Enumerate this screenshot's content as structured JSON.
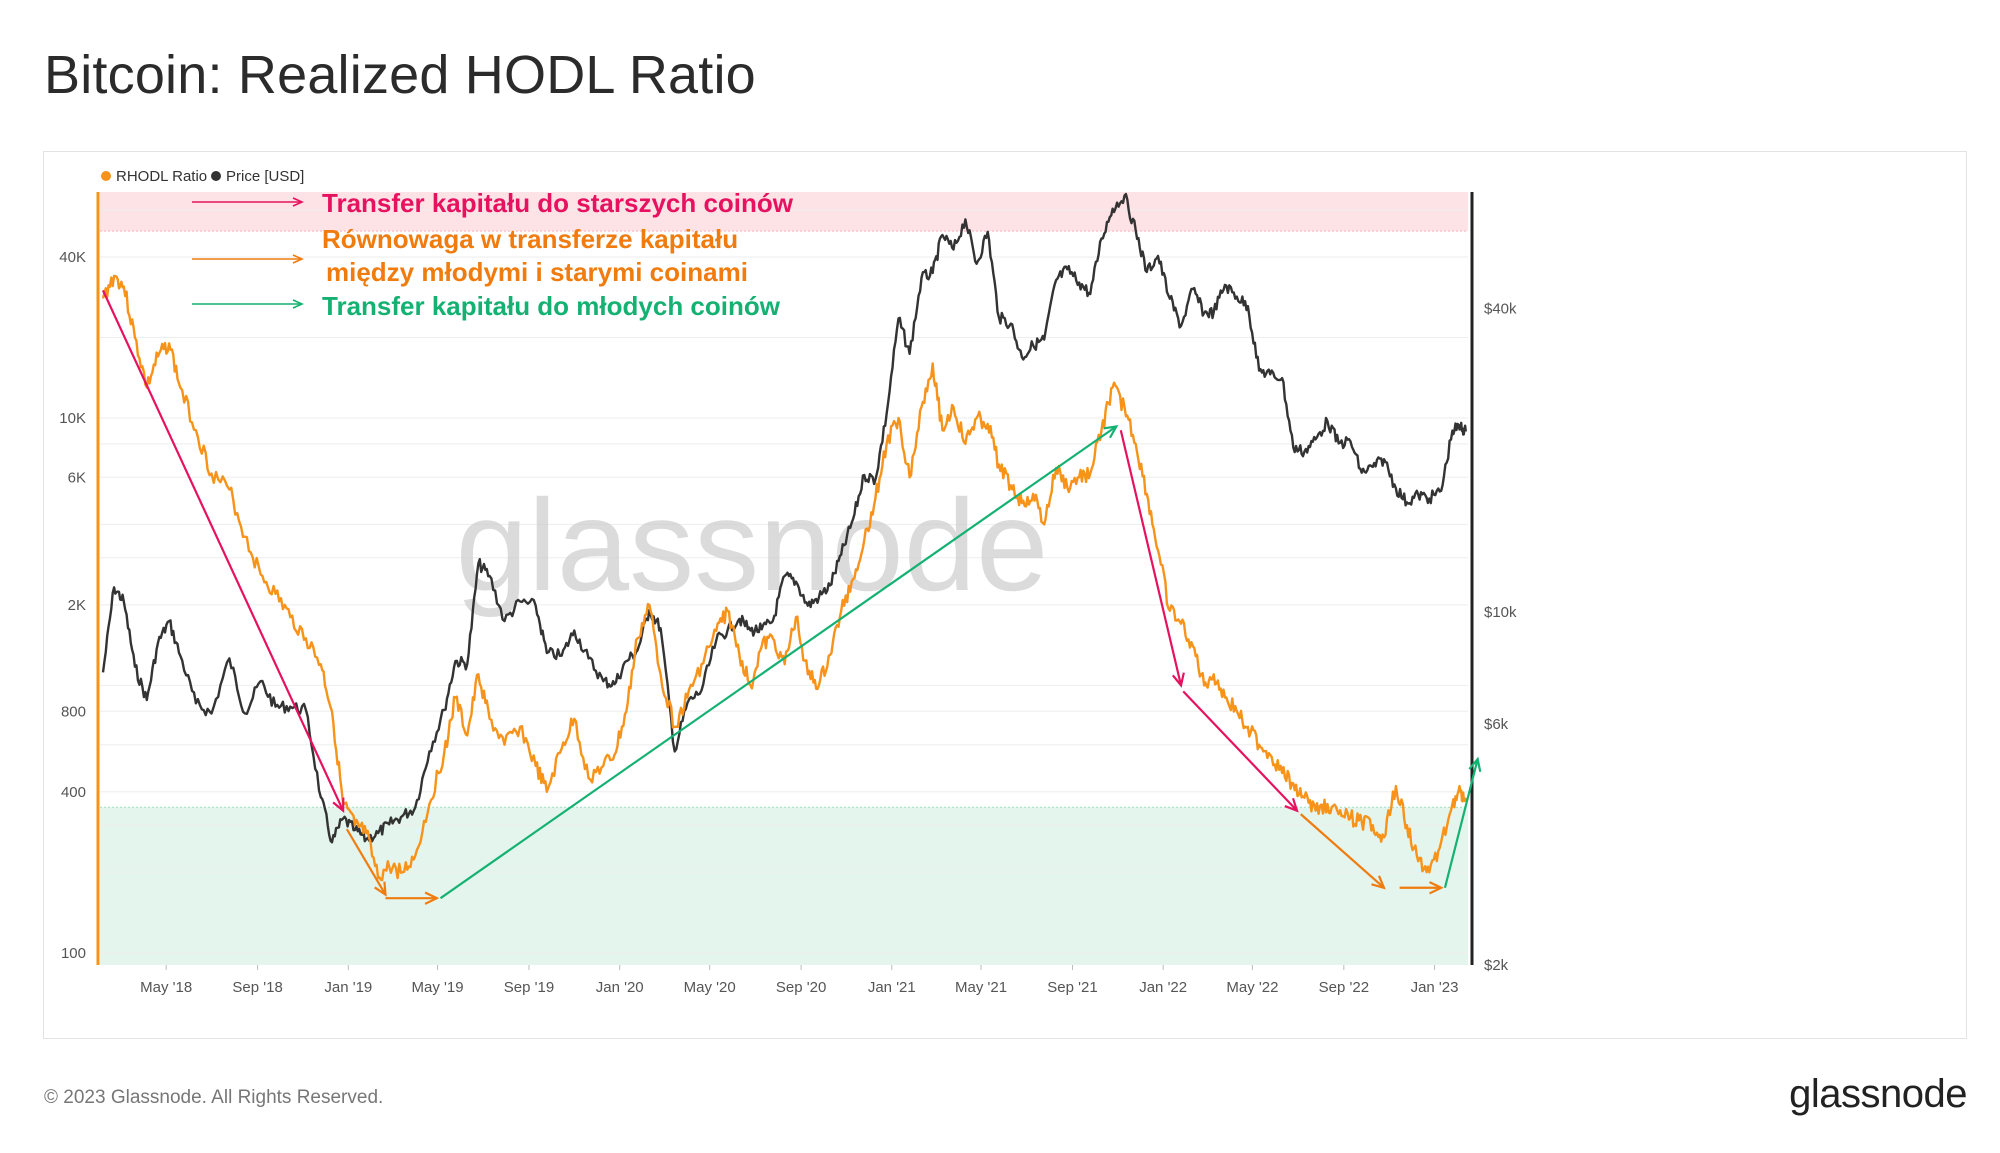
{
  "title": "Bitcoin: Realized HODL Ratio",
  "footer": {
    "copyright": "© 2023 Glassnode. All Rights Reserved.",
    "logo": "glassnode"
  },
  "watermark": "glassnode",
  "colors": {
    "rhodl": "#f7931a",
    "price": "#333333",
    "magenta": "#e6125f",
    "orange": "#f07c0f",
    "green": "#14b172",
    "top_band": "#fde2e6",
    "bottom_band": "#e3f5ec"
  },
  "chart_data": {
    "type": "line",
    "legend": [
      "RHODL Ratio",
      "Price [USD]"
    ],
    "legend_position": "top-left",
    "x_ticks": [
      "May '18",
      "Sep '18",
      "Jan '19",
      "May '19",
      "Sep '19",
      "Jan '20",
      "May '20",
      "Sep '20",
      "Jan '21",
      "May '21",
      "Sep '21",
      "Jan '22",
      "May '22",
      "Sep '22",
      "Jan '23"
    ],
    "x_tick_dates": [
      "2018-05-01",
      "2018-09-01",
      "2019-01-01",
      "2019-05-01",
      "2019-09-01",
      "2020-01-01",
      "2020-05-01",
      "2020-09-01",
      "2021-01-01",
      "2021-05-01",
      "2021-09-01",
      "2022-01-01",
      "2022-05-01",
      "2022-09-01",
      "2023-01-01"
    ],
    "x_range": [
      "2018-02-01",
      "2023-02-15"
    ],
    "left_axis": {
      "scale": "log",
      "ticks": [
        "100",
        "400",
        "800",
        "2K",
        "6K",
        "10K",
        "40K"
      ],
      "tick_values": [
        100,
        400,
        800,
        2000,
        6000,
        10000,
        40000
      ],
      "range": [
        90,
        70000
      ]
    },
    "right_axis": {
      "scale": "log",
      "ticks": [
        "$2k",
        "$6k",
        "$10k",
        "$40k"
      ],
      "tick_values": [
        2000,
        6000,
        10000,
        40000
      ],
      "range": [
        2000,
        68000
      ]
    },
    "bands": {
      "top_rhodl": [
        50000,
        70000
      ],
      "bottom_rhodl": [
        90,
        350
      ]
    },
    "series": [
      {
        "name": "RHODL Ratio",
        "axis": "left",
        "points": [
          [
            "2018-02-05",
            28000
          ],
          [
            "2018-02-20",
            34000
          ],
          [
            "2018-03-05",
            31000
          ],
          [
            "2018-03-20",
            20000
          ],
          [
            "2018-04-05",
            13000
          ],
          [
            "2018-04-20",
            17000
          ],
          [
            "2018-05-05",
            19000
          ],
          [
            "2018-05-20",
            13000
          ],
          [
            "2018-06-10",
            9000
          ],
          [
            "2018-07-01",
            6200
          ],
          [
            "2018-07-25",
            5400
          ],
          [
            "2018-08-15",
            3600
          ],
          [
            "2018-09-05",
            2600
          ],
          [
            "2018-09-25",
            2200
          ],
          [
            "2018-10-15",
            1800
          ],
          [
            "2018-11-05",
            1500
          ],
          [
            "2018-11-25",
            1200
          ],
          [
            "2018-12-10",
            800
          ],
          [
            "2018-12-25",
            360
          ],
          [
            "2019-01-10",
            300
          ],
          [
            "2019-01-25",
            280
          ],
          [
            "2019-02-10",
            190
          ],
          [
            "2019-02-25",
            210
          ],
          [
            "2019-03-15",
            200
          ],
          [
            "2019-04-01",
            230
          ],
          [
            "2019-04-20",
            360
          ],
          [
            "2019-05-10",
            560
          ],
          [
            "2019-05-25",
            900
          ],
          [
            "2019-06-10",
            650
          ],
          [
            "2019-06-25",
            1100
          ],
          [
            "2019-07-10",
            750
          ],
          [
            "2019-07-30",
            600
          ],
          [
            "2019-08-20",
            700
          ],
          [
            "2019-09-10",
            500
          ],
          [
            "2019-09-25",
            400
          ],
          [
            "2019-10-15",
            580
          ],
          [
            "2019-11-01",
            750
          ],
          [
            "2019-11-20",
            450
          ],
          [
            "2019-12-10",
            500
          ],
          [
            "2019-12-25",
            550
          ],
          [
            "2020-01-10",
            800
          ],
          [
            "2020-01-25",
            1500
          ],
          [
            "2020-02-10",
            2000
          ],
          [
            "2020-02-25",
            1100
          ],
          [
            "2020-03-15",
            700
          ],
          [
            "2020-04-01",
            900
          ],
          [
            "2020-04-20",
            1200
          ],
          [
            "2020-05-10",
            1600
          ],
          [
            "2020-05-25",
            1900
          ],
          [
            "2020-06-10",
            1300
          ],
          [
            "2020-06-25",
            1000
          ],
          [
            "2020-07-10",
            1400
          ],
          [
            "2020-07-25",
            1500
          ],
          [
            "2020-08-10",
            1200
          ],
          [
            "2020-08-25",
            1800
          ],
          [
            "2020-09-10",
            1100
          ],
          [
            "2020-09-25",
            1000
          ],
          [
            "2020-10-10",
            1300
          ],
          [
            "2020-10-25",
            1900
          ],
          [
            "2020-11-10",
            2500
          ],
          [
            "2020-11-25",
            3500
          ],
          [
            "2020-12-10",
            5000
          ],
          [
            "2020-12-25",
            8000
          ],
          [
            "2021-01-10",
            10000
          ],
          [
            "2021-01-25",
            6000
          ],
          [
            "2021-02-10",
            11000
          ],
          [
            "2021-02-25",
            16000
          ],
          [
            "2021-03-10",
            9000
          ],
          [
            "2021-03-25",
            11000
          ],
          [
            "2021-04-10",
            8000
          ],
          [
            "2021-04-25",
            10000
          ],
          [
            "2021-05-10",
            9500
          ],
          [
            "2021-05-25",
            6700
          ],
          [
            "2021-06-10",
            5600
          ],
          [
            "2021-06-25",
            4800
          ],
          [
            "2021-07-10",
            5200
          ],
          [
            "2021-07-25",
            4000
          ],
          [
            "2021-08-10",
            6500
          ],
          [
            "2021-08-25",
            5500
          ],
          [
            "2021-09-10",
            6000
          ],
          [
            "2021-09-25",
            6200
          ],
          [
            "2021-10-10",
            9000
          ],
          [
            "2021-10-25",
            13000
          ],
          [
            "2021-11-10",
            11000
          ],
          [
            "2021-11-25",
            8000
          ],
          [
            "2021-12-10",
            5200
          ],
          [
            "2021-12-25",
            3200
          ],
          [
            "2022-01-10",
            1900
          ],
          [
            "2022-01-25",
            1700
          ],
          [
            "2022-02-10",
            1400
          ],
          [
            "2022-02-25",
            1000
          ],
          [
            "2022-03-10",
            1100
          ],
          [
            "2022-03-25",
            900
          ],
          [
            "2022-04-10",
            800
          ],
          [
            "2022-04-25",
            700
          ],
          [
            "2022-05-10",
            600
          ],
          [
            "2022-05-25",
            550
          ],
          [
            "2022-06-10",
            470
          ],
          [
            "2022-06-25",
            430
          ],
          [
            "2022-07-10",
            380
          ],
          [
            "2022-07-25",
            340
          ],
          [
            "2022-08-10",
            360
          ],
          [
            "2022-08-25",
            330
          ],
          [
            "2022-09-10",
            320
          ],
          [
            "2022-09-25",
            310
          ],
          [
            "2022-10-10",
            300
          ],
          [
            "2022-10-25",
            270
          ],
          [
            "2022-11-10",
            420
          ],
          [
            "2022-11-25",
            300
          ],
          [
            "2022-12-10",
            220
          ],
          [
            "2022-12-25",
            200
          ],
          [
            "2023-01-10",
            260
          ],
          [
            "2023-01-25",
            360
          ],
          [
            "2023-02-05",
            400
          ],
          [
            "2023-02-12",
            380
          ]
        ]
      },
      {
        "name": "Price [USD]",
        "axis": "right",
        "points": [
          [
            "2018-02-05",
            7600
          ],
          [
            "2018-02-20",
            11200
          ],
          [
            "2018-03-05",
            10500
          ],
          [
            "2018-03-20",
            7800
          ],
          [
            "2018-04-05",
            6700
          ],
          [
            "2018-04-20",
            8700
          ],
          [
            "2018-05-05",
            9600
          ],
          [
            "2018-05-20",
            8200
          ],
          [
            "2018-06-10",
            6600
          ],
          [
            "2018-07-01",
            6300
          ],
          [
            "2018-07-25",
            8100
          ],
          [
            "2018-08-15",
            6300
          ],
          [
            "2018-09-05",
            7300
          ],
          [
            "2018-09-25",
            6500
          ],
          [
            "2018-10-15",
            6500
          ],
          [
            "2018-11-05",
            6400
          ],
          [
            "2018-11-25",
            4300
          ],
          [
            "2018-12-10",
            3500
          ],
          [
            "2018-12-25",
            3900
          ],
          [
            "2019-01-10",
            3700
          ],
          [
            "2019-01-25",
            3550
          ],
          [
            "2019-02-10",
            3650
          ],
          [
            "2019-02-25",
            3800
          ],
          [
            "2019-03-15",
            3950
          ],
          [
            "2019-04-01",
            4100
          ],
          [
            "2019-04-20",
            5300
          ],
          [
            "2019-05-10",
            6400
          ],
          [
            "2019-05-25",
            8000
          ],
          [
            "2019-06-10",
            7900
          ],
          [
            "2019-06-25",
            12500
          ],
          [
            "2019-07-10",
            11800
          ],
          [
            "2019-07-30",
            9600
          ],
          [
            "2019-08-20",
            10500
          ],
          [
            "2019-09-10",
            10300
          ],
          [
            "2019-09-25",
            8300
          ],
          [
            "2019-10-15",
            8200
          ],
          [
            "2019-11-01",
            9200
          ],
          [
            "2019-11-20",
            8100
          ],
          [
            "2019-12-10",
            7300
          ],
          [
            "2019-12-25",
            7200
          ],
          [
            "2020-01-10",
            8000
          ],
          [
            "2020-01-25",
            8400
          ],
          [
            "2020-02-10",
            10100
          ],
          [
            "2020-02-25",
            9300
          ],
          [
            "2020-03-15",
            5300
          ],
          [
            "2020-04-01",
            6600
          ],
          [
            "2020-04-20",
            7000
          ],
          [
            "2020-05-10",
            8800
          ],
          [
            "2020-05-25",
            9200
          ],
          [
            "2020-06-10",
            9700
          ],
          [
            "2020-06-25",
            9200
          ],
          [
            "2020-07-10",
            9250
          ],
          [
            "2020-07-25",
            9600
          ],
          [
            "2020-08-10",
            11800
          ],
          [
            "2020-08-25",
            11500
          ],
          [
            "2020-09-10",
            10300
          ],
          [
            "2020-09-25",
            10700
          ],
          [
            "2020-10-10",
            11300
          ],
          [
            "2020-10-25",
            13000
          ],
          [
            "2020-11-10",
            15300
          ],
          [
            "2020-11-25",
            18700
          ],
          [
            "2020-12-10",
            18300
          ],
          [
            "2020-12-25",
            24700
          ],
          [
            "2021-01-10",
            38200
          ],
          [
            "2021-01-25",
            32500
          ],
          [
            "2021-02-10",
            46000
          ],
          [
            "2021-02-25",
            47000
          ],
          [
            "2021-03-10",
            55900
          ],
          [
            "2021-03-25",
            52300
          ],
          [
            "2021-04-10",
            60000
          ],
          [
            "2021-04-25",
            49000
          ],
          [
            "2021-05-10",
            56700
          ],
          [
            "2021-05-25",
            38400
          ],
          [
            "2021-06-10",
            37300
          ],
          [
            "2021-06-25",
            32000
          ],
          [
            "2021-07-10",
            33800
          ],
          [
            "2021-07-25",
            34700
          ],
          [
            "2021-08-10",
            45500
          ],
          [
            "2021-08-25",
            47800
          ],
          [
            "2021-09-10",
            45000
          ],
          [
            "2021-09-25",
            42700
          ],
          [
            "2021-10-10",
            55000
          ],
          [
            "2021-10-25",
            63000
          ],
          [
            "2021-11-10",
            66900
          ],
          [
            "2021-11-25",
            57100
          ],
          [
            "2021-12-10",
            47200
          ],
          [
            "2021-12-25",
            50800
          ],
          [
            "2022-01-10",
            41800
          ],
          [
            "2022-01-25",
            36900
          ],
          [
            "2022-02-10",
            43700
          ],
          [
            "2022-02-25",
            39100
          ],
          [
            "2022-03-10",
            39300
          ],
          [
            "2022-03-25",
            44500
          ],
          [
            "2022-04-10",
            42200
          ],
          [
            "2022-04-25",
            40400
          ],
          [
            "2022-05-10",
            30100
          ],
          [
            "2022-05-25",
            29600
          ],
          [
            "2022-06-10",
            29100
          ],
          [
            "2022-06-25",
            21200
          ],
          [
            "2022-07-10",
            20800
          ],
          [
            "2022-07-25",
            22000
          ],
          [
            "2022-08-10",
            23900
          ],
          [
            "2022-08-25",
            21600
          ],
          [
            "2022-09-10",
            21800
          ],
          [
            "2022-09-25",
            18900
          ],
          [
            "2022-10-10",
            19400
          ],
          [
            "2022-10-25",
            20100
          ],
          [
            "2022-11-10",
            17600
          ],
          [
            "2022-11-25",
            16500
          ],
          [
            "2022-12-10",
            17100
          ],
          [
            "2022-12-25",
            16800
          ],
          [
            "2023-01-10",
            17400
          ],
          [
            "2023-01-25",
            22900
          ],
          [
            "2023-02-05",
            23300
          ],
          [
            "2023-02-12",
            22800
          ]
        ]
      }
    ],
    "annotations": [
      {
        "text": "Transfer kapitału do starszych coinów",
        "color": "magenta"
      },
      {
        "text": "Równowaga w transferze kapitału",
        "color": "orange"
      },
      {
        "text": "między młodymi i starymi coinami",
        "color": "orange"
      },
      {
        "text": "Transfer kapitału do młodych coinów",
        "color": "green"
      }
    ],
    "trend_arrows": [
      {
        "color": "magenta",
        "from": [
          "2018-02-05",
          30000
        ],
        "to": [
          "2018-12-25",
          340
        ]
      },
      {
        "color": "orange",
        "from": [
          "2018-12-30",
          290
        ],
        "to": [
          "2019-02-20",
          165
        ]
      },
      {
        "color": "orange",
        "from": [
          "2019-02-20",
          160
        ],
        "to": [
          "2019-04-30",
          160
        ]
      },
      {
        "color": "green",
        "from": [
          "2019-05-05",
          160
        ],
        "to": [
          "2021-10-30",
          9300
        ]
      },
      {
        "color": "magenta",
        "from": [
          "2021-11-05",
          9000
        ],
        "to": [
          "2022-01-25",
          1000
        ]
      },
      {
        "color": "magenta",
        "from": [
          "2022-01-28",
          950
        ],
        "to": [
          "2022-06-30",
          340
        ]
      },
      {
        "color": "orange",
        "from": [
          "2022-07-05",
          330
        ],
        "to": [
          "2022-10-25",
          175
        ]
      },
      {
        "color": "orange",
        "from": [
          "2022-11-15",
          175
        ],
        "to": [
          "2023-01-10",
          175
        ]
      },
      {
        "color": "green",
        "from": [
          "2023-01-15",
          175
        ],
        "to": [
          "2023-02-28",
          530
        ]
      }
    ]
  }
}
